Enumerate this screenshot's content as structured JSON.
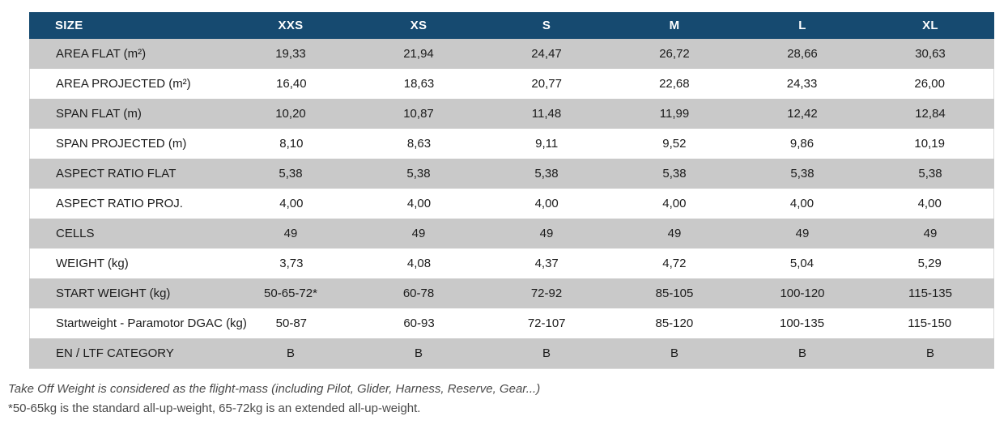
{
  "table": {
    "columns": [
      "SIZE",
      "XXS",
      "XS",
      "S",
      "M",
      "L",
      "XL"
    ],
    "rows": [
      {
        "label": "AREA FLAT (m²)",
        "values": [
          "19,33",
          "21,94",
          "24,47",
          "26,72",
          "28,66",
          "30,63"
        ]
      },
      {
        "label": "AREA PROJECTED (m²)",
        "values": [
          "16,40",
          "18,63",
          "20,77",
          "22,68",
          "24,33",
          "26,00"
        ]
      },
      {
        "label": "SPAN FLAT (m)",
        "values": [
          "10,20",
          "10,87",
          "11,48",
          "11,99",
          "12,42",
          "12,84"
        ]
      },
      {
        "label": "SPAN PROJECTED (m)",
        "values": [
          "8,10",
          "8,63",
          "9,11",
          "9,52",
          "9,86",
          "10,19"
        ]
      },
      {
        "label": "ASPECT RATIO FLAT",
        "values": [
          "5,38",
          "5,38",
          "5,38",
          "5,38",
          "5,38",
          "5,38"
        ]
      },
      {
        "label": "ASPECT RATIO PROJ.",
        "values": [
          "4,00",
          "4,00",
          "4,00",
          "4,00",
          "4,00",
          "4,00"
        ]
      },
      {
        "label": "CELLS",
        "values": [
          "49",
          "49",
          "49",
          "49",
          "49",
          "49"
        ]
      },
      {
        "label": "WEIGHT (kg)",
        "values": [
          "3,73",
          "4,08",
          "4,37",
          "4,72",
          "5,04",
          "5,29"
        ]
      },
      {
        "label": "START WEIGHT (kg)",
        "values": [
          "50-65-72*",
          "60-78",
          "72-92",
          "85-105",
          "100-120",
          "115-135"
        ]
      },
      {
        "label": "Startweight - Paramotor DGAC (kg)",
        "values": [
          "50-87",
          "60-93",
          "72-107",
          "85-120",
          "100-135",
          "115-150"
        ]
      },
      {
        "label": "EN / LTF CATEGORY",
        "values": [
          "B",
          "B",
          "B",
          "B",
          "B",
          "B"
        ]
      }
    ]
  },
  "notes": {
    "line1": "Take Off Weight is considered as the flight-mass (including Pilot, Glider, Harness, Reserve, Gear...)",
    "line2": "*50-65kg is the standard all-up-weight, 65-72kg is an extended all-up-weight."
  },
  "colors": {
    "header_bg": "#164a70",
    "header_text": "#ffffff",
    "row_alt_bg": "#c9c9c9",
    "row_bg": "#ffffff",
    "cell_text": "#1c1c1c",
    "note_text": "#4a4a4a"
  }
}
